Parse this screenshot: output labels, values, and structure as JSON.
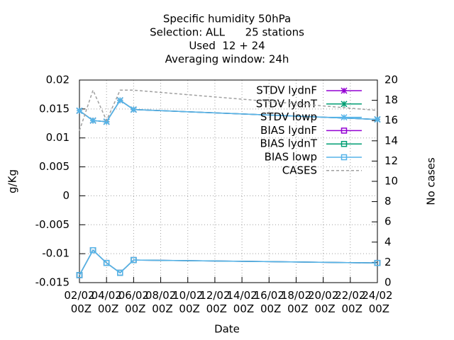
{
  "chart_data": {
    "type": "line",
    "title": [
      "Specific humidity 50hPa",
      "Selection: ALL      25 stations",
      "Used  12 + 24",
      "Averaging window: 24h"
    ],
    "xlabel": "Date",
    "ylabel": "g/Kg",
    "y2label": "No cases",
    "x": [
      2,
      3,
      4,
      5,
      6,
      24
    ],
    "xlim": [
      2,
      24
    ],
    "xticks": [
      {
        "value": 2,
        "label": "02/02 00Z"
      },
      {
        "value": 4,
        "label": "04/02 00Z"
      },
      {
        "value": 6,
        "label": "06/02 00Z"
      },
      {
        "value": 8,
        "label": "08/02 00Z"
      },
      {
        "value": 10,
        "label": "10/02 00Z"
      },
      {
        "value": 12,
        "label": "12/02 00Z"
      },
      {
        "value": 14,
        "label": "14/02 00Z"
      },
      {
        "value": 16,
        "label": "16/02 00Z"
      },
      {
        "value": 18,
        "label": "18/02 00Z"
      },
      {
        "value": 20,
        "label": "20/02 00Z"
      },
      {
        "value": 22,
        "label": "22/02 00Z"
      },
      {
        "value": 24,
        "label": "24/02 00Z"
      }
    ],
    "ylim": [
      -0.015,
      0.02
    ],
    "yticks": [
      0.02,
      0.015,
      0.01,
      0.005,
      0,
      -0.005,
      -0.01,
      -0.015
    ],
    "y2lim": [
      0,
      20
    ],
    "y2ticks": [
      20,
      18,
      16,
      14,
      12,
      10,
      8,
      6,
      4,
      2,
      0
    ],
    "grid": true,
    "legend": "top right",
    "series": [
      {
        "name": "STDV lydnF",
        "color": "#9400d3",
        "marker": "star",
        "values": [
          0.0147,
          0.013,
          0.0128,
          0.0165,
          0.0149,
          0.0132
        ]
      },
      {
        "name": "STDV lydnT",
        "color": "#009e73",
        "marker": "star",
        "values": [
          0.0147,
          0.013,
          0.0128,
          0.0165,
          0.0149,
          0.0132
        ]
      },
      {
        "name": "STDV lowp",
        "color": "#56b4e9",
        "marker": "star",
        "values": [
          0.0147,
          0.013,
          0.0128,
          0.0165,
          0.0149,
          0.0132
        ]
      },
      {
        "name": "BIAS lydnF",
        "color": "#9400d3",
        "marker": "square",
        "values": [
          -0.0137,
          -0.0094,
          -0.0116,
          -0.0133,
          -0.0111,
          -0.0116
        ]
      },
      {
        "name": "BIAS lydnT",
        "color": "#009e73",
        "marker": "square",
        "values": [
          -0.0137,
          -0.0094,
          -0.0116,
          -0.0133,
          -0.0111,
          -0.0116
        ]
      },
      {
        "name": "BIAS lowp",
        "color": "#56b4e9",
        "marker": "square",
        "values": [
          -0.0137,
          -0.0094,
          -0.0116,
          -0.0133,
          -0.0111,
          -0.0116
        ]
      },
      {
        "name": "CASES",
        "color": "#a0a0a0",
        "dashed": true,
        "axis": "y2",
        "values": [
          15,
          19,
          16,
          19,
          19,
          17
        ]
      }
    ]
  }
}
